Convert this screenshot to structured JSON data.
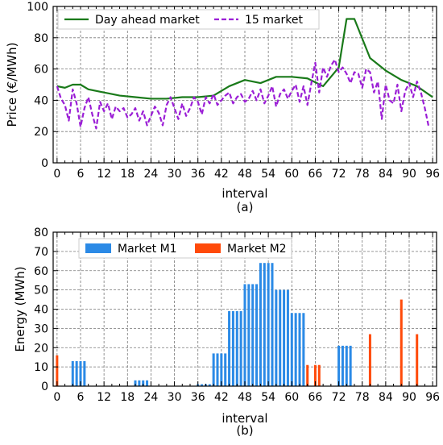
{
  "chart_data": [
    {
      "type": "line",
      "xlabel": "interval",
      "ylabel": "Price (€/MWh)",
      "caption": "(a)",
      "xlim": [
        -1,
        97
      ],
      "ylim": [
        0,
        100
      ],
      "xticks": [
        0,
        6,
        12,
        18,
        24,
        30,
        36,
        42,
        48,
        54,
        60,
        66,
        72,
        78,
        84,
        90,
        96
      ],
      "yticks": [
        0,
        20,
        40,
        60,
        80,
        100
      ],
      "grid": true,
      "legend_position": "top-left",
      "colors": {
        "Day ahead market": "#1a7a1a",
        "15 market": "#9b1fd6"
      },
      "series": [
        {
          "name": "Day ahead market",
          "style": "solid",
          "x": [
            0,
            2,
            4,
            6,
            8,
            12,
            16,
            20,
            24,
            28,
            32,
            36,
            40,
            44,
            48,
            52,
            56,
            60,
            64,
            68,
            72,
            74,
            76,
            80,
            84,
            88,
            92,
            96
          ],
          "y": [
            49,
            48,
            50,
            50,
            47,
            45,
            43,
            42,
            41,
            41,
            42,
            42,
            43,
            49,
            53,
            51,
            55,
            55,
            54,
            49,
            61,
            92,
            92,
            67,
            59,
            53,
            49,
            42
          ]
        },
        {
          "name": "15 market",
          "style": "dashed",
          "x": [
            0,
            1,
            2,
            3,
            4,
            5,
            6,
            7,
            8,
            9,
            10,
            11,
            12,
            13,
            14,
            15,
            16,
            17,
            18,
            19,
            20,
            21,
            22,
            23,
            24,
            25,
            26,
            27,
            28,
            29,
            30,
            31,
            32,
            33,
            34,
            35,
            36,
            37,
            38,
            39,
            40,
            41,
            42,
            43,
            44,
            45,
            46,
            47,
            48,
            49,
            50,
            51,
            52,
            53,
            54,
            55,
            56,
            57,
            58,
            59,
            60,
            61,
            62,
            63,
            64,
            65,
            66,
            67,
            68,
            69,
            70,
            71,
            72,
            73,
            74,
            75,
            76,
            77,
            78,
            79,
            80,
            81,
            82,
            83,
            84,
            85,
            86,
            87,
            88,
            89,
            90,
            91,
            92,
            93,
            94,
            95
          ],
          "y": [
            49,
            41,
            37,
            27,
            47,
            38,
            23,
            35,
            42,
            31,
            22,
            39,
            33,
            38,
            28,
            36,
            33,
            35,
            29,
            31,
            35,
            27,
            33,
            24,
            30,
            36,
            32,
            24,
            37,
            42,
            35,
            28,
            38,
            30,
            35,
            42,
            39,
            31,
            42,
            38,
            44,
            37,
            40,
            43,
            45,
            38,
            42,
            44,
            39,
            41,
            46,
            40,
            47,
            38,
            43,
            49,
            36,
            44,
            47,
            41,
            46,
            50,
            39,
            49,
            37,
            51,
            64,
            45,
            61,
            55,
            62,
            66,
            58,
            61,
            57,
            51,
            58,
            57,
            48,
            60,
            58,
            45,
            52,
            28,
            50,
            40,
            38,
            50,
            33,
            46,
            51,
            42,
            52,
            45,
            35,
            23
          ]
        }
      ]
    },
    {
      "type": "bar",
      "xlabel": "interval",
      "ylabel": "Energy (MWh)",
      "caption": "(b)",
      "xlim": [
        -1,
        97
      ],
      "ylim": [
        0,
        80
      ],
      "xticks": [
        0,
        6,
        12,
        18,
        24,
        30,
        36,
        42,
        48,
        54,
        60,
        66,
        72,
        78,
        84,
        90,
        96
      ],
      "yticks": [
        0,
        10,
        20,
        30,
        40,
        50,
        60,
        70,
        80
      ],
      "grid": true,
      "legend_position": "top-left",
      "colors": {
        "Market M1": "#2b8ae6",
        "Market M2": "#ff4a0a"
      },
      "series": [
        {
          "name": "Market M1",
          "x": [
            4,
            5,
            6,
            7,
            20,
            21,
            22,
            23,
            36,
            37,
            38,
            39,
            40,
            41,
            42,
            43,
            44,
            45,
            46,
            47,
            48,
            49,
            50,
            51,
            52,
            53,
            54,
            55,
            56,
            57,
            58,
            59,
            60,
            61,
            62,
            63,
            72,
            73,
            74,
            75
          ],
          "y": [
            13,
            13,
            13,
            13,
            3,
            3,
            3,
            3,
            1,
            1,
            1,
            1,
            17,
            17,
            17,
            17,
            39,
            39,
            39,
            39,
            53,
            53,
            53,
            53,
            64,
            64,
            64,
            64,
            50,
            50,
            50,
            50,
            38,
            38,
            38,
            38,
            21,
            21,
            21,
            21
          ]
        },
        {
          "name": "Market M2",
          "x": [
            0,
            64,
            66,
            67,
            80,
            88,
            92
          ],
          "y": [
            16,
            11,
            11,
            11,
            27,
            45,
            27
          ]
        }
      ]
    }
  ]
}
